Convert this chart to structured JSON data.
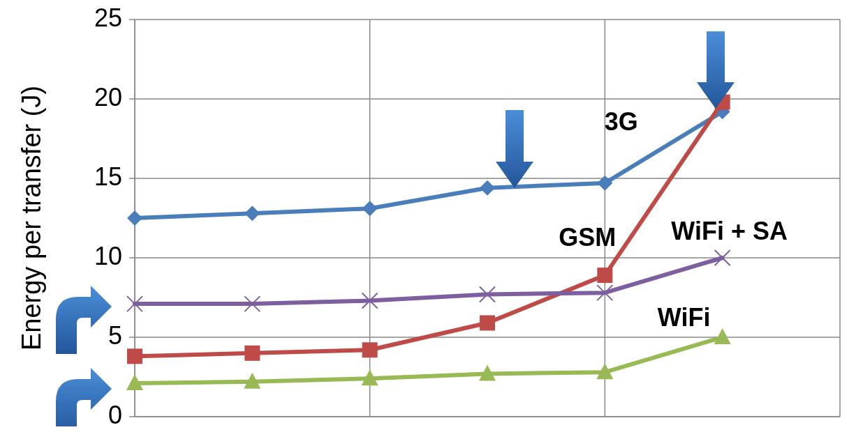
{
  "chart_data": {
    "type": "line",
    "ylabel": "Energy per transfer (J)",
    "categories": [
      null,
      null,
      null,
      null,
      null,
      null
    ],
    "ylim": [
      0,
      25
    ],
    "yticks": [
      0,
      5,
      10,
      15,
      20,
      25
    ],
    "grid": true,
    "legend": false,
    "line_style": "solid",
    "series": [
      {
        "name": "3G",
        "color": "#4a7ebb",
        "marker": "diamond",
        "values": [
          12.5,
          12.8,
          13.1,
          14.4,
          14.7,
          19.2
        ]
      },
      {
        "name": "GSM",
        "color": "#be4b48",
        "marker": "square",
        "values": [
          3.8,
          4.0,
          4.2,
          5.9,
          8.9,
          19.8
        ]
      },
      {
        "name": "WiFi + SA",
        "color": "#7d5fa0",
        "marker": "cross",
        "values": [
          7.1,
          7.1,
          7.3,
          7.7,
          7.8,
          10.0
        ]
      },
      {
        "name": "WiFi",
        "color": "#98b954",
        "marker": "triangle",
        "values": [
          2.1,
          2.2,
          2.4,
          2.7,
          2.8,
          5.0
        ]
      }
    ]
  }
}
